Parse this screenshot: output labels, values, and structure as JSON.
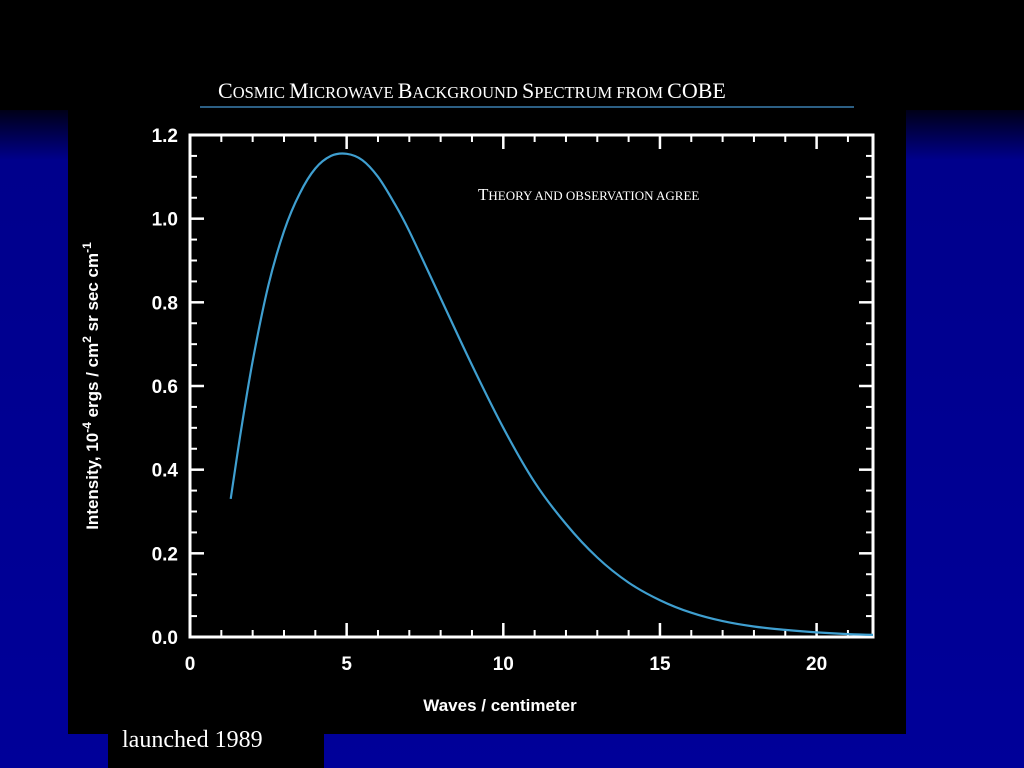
{
  "caption": "launched 1989",
  "chart_data": {
    "type": "line",
    "title_parts": [
      {
        "cap": "C",
        "rest": "OSMIC "
      },
      {
        "cap": "M",
        "rest": "ICROWAVE "
      },
      {
        "cap": "B",
        "rest": "ACKGROUND "
      },
      {
        "cap": "S",
        "rest": "PECTRUM FROM "
      },
      {
        "cap": "COBE",
        "rest": ""
      }
    ],
    "title": "Cosmic Microwave Background Spectrum from COBE",
    "annotation": "Theory and observation agree",
    "xlabel": "Waves / centimeter",
    "ylabel": "Intensity, 10-4 ergs / cm2 sr sec cm-1",
    "ylabel_parts": {
      "a": "Intensity, 10",
      "exp1": "-4",
      "b": " ergs / cm",
      "exp2": "2",
      "c": " sr sec cm",
      "exp3": "-1"
    },
    "xlim": [
      0,
      21.8
    ],
    "ylim": [
      0,
      1.2
    ],
    "x_ticks": [
      0,
      5,
      10,
      15,
      20
    ],
    "x_tick_labels": [
      "0",
      "5",
      "10",
      "15",
      "20"
    ],
    "y_ticks": [
      0,
      0.2,
      0.4,
      0.6,
      0.8,
      1.0,
      1.2
    ],
    "y_tick_labels": [
      "0.0",
      "0.2",
      "0.4",
      "0.6",
      "0.8",
      "1.0",
      "1.2"
    ],
    "grid": false,
    "colors": {
      "curve": "#3f9fd0",
      "axes": "#ffffff",
      "title_rule": "#3a7fb0"
    },
    "series": [
      {
        "x": [
          1.3,
          1.6,
          2.0,
          2.5,
          3.0,
          3.5,
          4.0,
          4.5,
          5.0,
          5.5,
          6.0,
          6.5,
          7.0,
          8.0,
          9.0,
          10.0,
          11.0,
          12.0,
          13.0,
          14.0,
          15.0,
          16.0,
          17.0,
          18.0,
          19.0,
          20.0,
          21.0,
          21.8
        ],
        "y": [
          0.33,
          0.48,
          0.66,
          0.84,
          0.97,
          1.06,
          1.12,
          1.15,
          1.155,
          1.14,
          1.1,
          1.04,
          0.97,
          0.81,
          0.65,
          0.5,
          0.37,
          0.27,
          0.19,
          0.13,
          0.088,
          0.058,
          0.038,
          0.025,
          0.017,
          0.011,
          0.007,
          0.005
        ]
      }
    ]
  }
}
